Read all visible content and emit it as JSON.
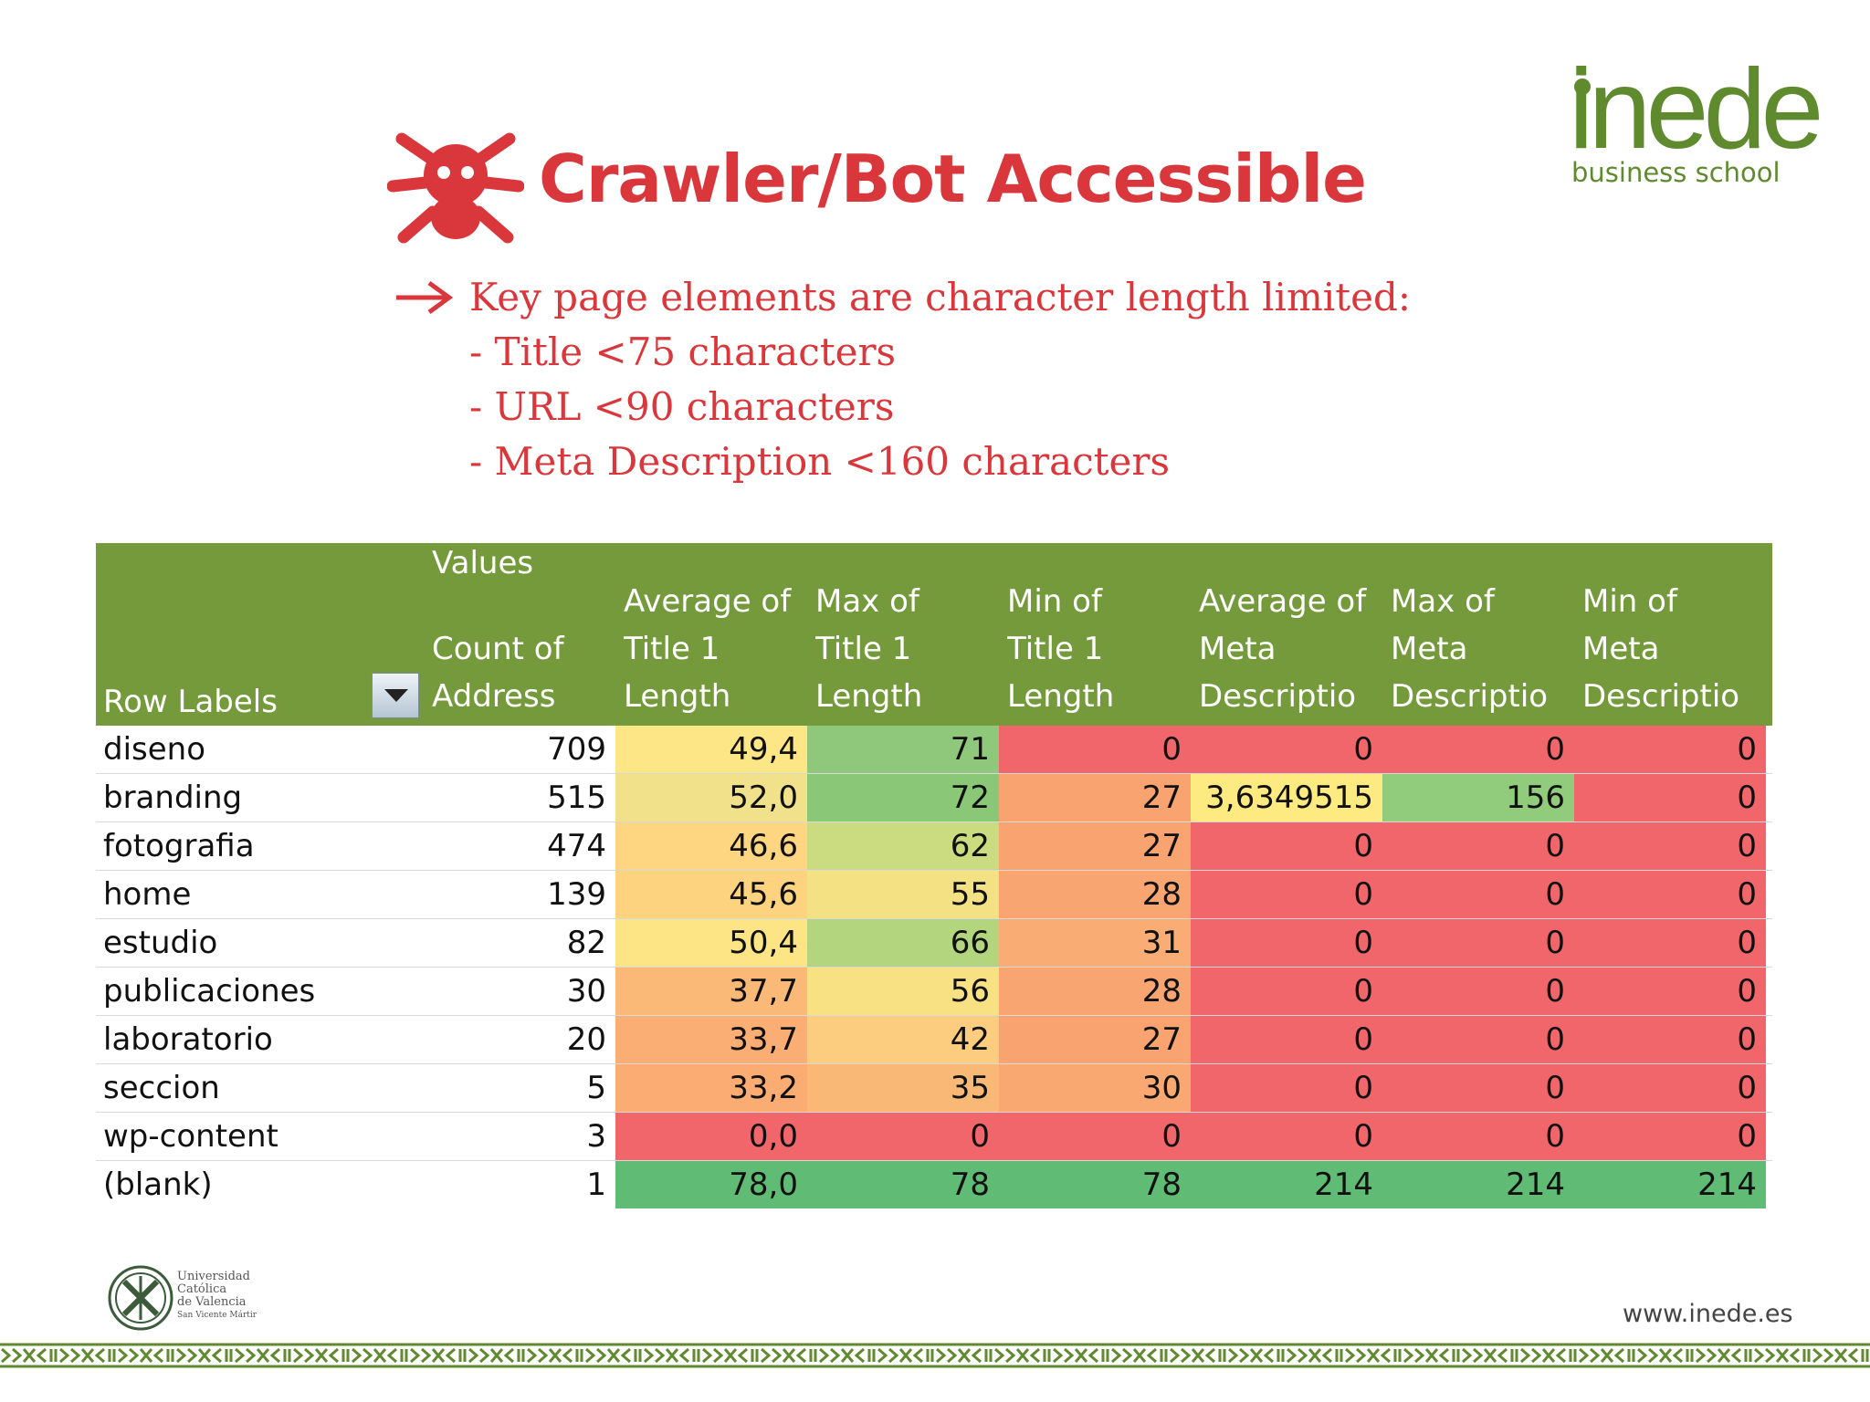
{
  "logo": {
    "word": "inede",
    "sub": "business school"
  },
  "title": "Crawler/Bot Accessible",
  "bullets": {
    "main": "Key page elements are character length limited:",
    "items": [
      "- Title <75 characters",
      "- URL <90 characters",
      "- Meta Description <160 characters"
    ]
  },
  "pivot": {
    "values_label": "Values",
    "row_labels_header": "Row Labels",
    "columns": [
      "Count of\nAddress",
      "Average of\nTitle 1\nLength",
      "Max of\nTitle 1\nLength",
      "Min of\nTitle 1\nLength",
      "Average of\nMeta\nDescriptio",
      "Max of\nMeta\nDescriptio",
      "Min of\nMeta\nDescriptio"
    ],
    "rows": [
      {
        "label": "diseno",
        "values": [
          "709",
          "49,4",
          "71",
          "0",
          "0",
          "0",
          "0"
        ]
      },
      {
        "label": "branding",
        "values": [
          "515",
          "52,0",
          "72",
          "27",
          "3,6349515",
          "156",
          "0"
        ]
      },
      {
        "label": "fotografia",
        "values": [
          "474",
          "46,6",
          "62",
          "27",
          "0",
          "0",
          "0"
        ]
      },
      {
        "label": "home",
        "values": [
          "139",
          "45,6",
          "55",
          "28",
          "0",
          "0",
          "0"
        ]
      },
      {
        "label": "estudio",
        "values": [
          "82",
          "50,4",
          "66",
          "31",
          "0",
          "0",
          "0"
        ]
      },
      {
        "label": "publicaciones",
        "values": [
          "30",
          "37,7",
          "56",
          "28",
          "0",
          "0",
          "0"
        ]
      },
      {
        "label": "laboratorio",
        "values": [
          "20",
          "33,7",
          "42",
          "27",
          "0",
          "0",
          "0"
        ]
      },
      {
        "label": "seccion",
        "values": [
          "5",
          "33,2",
          "35",
          "30",
          "0",
          "0",
          "0"
        ]
      },
      {
        "label": "wp-content",
        "values": [
          "3",
          "0,0",
          "0",
          "0",
          "0",
          "0",
          "0"
        ]
      },
      {
        "label": "(blank)",
        "values": [
          "1",
          "78,0",
          "78",
          "78",
          "214",
          "214",
          "214"
        ]
      }
    ],
    "cell_colors": [
      [
        "#fde686",
        "#8fc87a",
        "#f1666a",
        "#f1666a",
        "#f1666a",
        "#f1666a"
      ],
      [
        "#f0e18a",
        "#8ac878",
        "#f8a370",
        "#fdea80",
        "#91cb7c",
        "#f1666a"
      ],
      [
        "#fed681",
        "#cbdc80",
        "#f8a370",
        "#f1666a",
        "#f1666a",
        "#f1666a"
      ],
      [
        "#fdd380",
        "#f4e184",
        "#f8a571",
        "#f1666a",
        "#f1666a",
        "#f1666a"
      ],
      [
        "#fde585",
        "#b3d57d",
        "#f9ad74",
        "#f1666a",
        "#f1666a",
        "#f1666a"
      ],
      [
        "#fbb978",
        "#f7e183",
        "#f8a571",
        "#f1666a",
        "#f1666a",
        "#f1666a"
      ],
      [
        "#faae74",
        "#fccd7e",
        "#f8a370",
        "#f1666a",
        "#f1666a",
        "#f1666a"
      ],
      [
        "#faac73",
        "#fab877",
        "#f9a872",
        "#f1666a",
        "#f1666a",
        "#f1666a"
      ],
      [
        "#f1666a",
        "#f1666a",
        "#f1666a",
        "#f1666a",
        "#f1666a",
        "#f1666a"
      ],
      [
        "#60bb74",
        "#60bb74",
        "#60bb74",
        "#60bb74",
        "#60bb74",
        "#60bb74"
      ]
    ]
  },
  "footer": {
    "university": [
      "Universidad",
      "Católica",
      "de Valencia",
      "San Vicente Mártir"
    ],
    "website": "www.inede.es"
  },
  "colors": {
    "accent_red": "#d9373b",
    "brand_green": "#5f8a2e",
    "header_green": "#759a3c"
  }
}
